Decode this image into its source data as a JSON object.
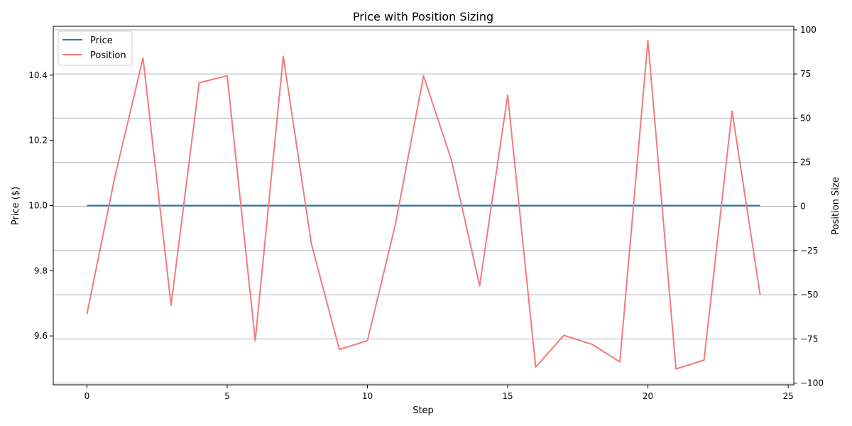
{
  "chart_data": {
    "type": "line",
    "title": "Price with Position Sizing",
    "xlabel": "Step",
    "ylabel_left": "Price ($)",
    "ylabel_right": "Position Size",
    "x": [
      0,
      1,
      2,
      3,
      4,
      5,
      6,
      7,
      8,
      9,
      10,
      11,
      12,
      13,
      14,
      15,
      16,
      17,
      18,
      19,
      20,
      21,
      22,
      23,
      24
    ],
    "xlim": [
      -1.2,
      25.2
    ],
    "xticks": [
      0,
      5,
      10,
      15,
      20,
      25
    ],
    "ylim_left": [
      9.45,
      10.55
    ],
    "yticks_left": [
      "9.6",
      "9.8",
      "10.0",
      "10.2",
      "10.4"
    ],
    "ylim_right": [
      -101,
      102
    ],
    "yticks_right": [
      -100,
      -75,
      -50,
      -25,
      0,
      25,
      50,
      75,
      100
    ],
    "grid": "horizontal (right axis)",
    "legend_position": "upper left",
    "series": [
      {
        "name": "Price",
        "axis": "left",
        "color": "#1f77b4",
        "values": [
          10,
          10,
          10,
          10,
          10,
          10,
          10,
          10,
          10,
          10,
          10,
          10,
          10,
          10,
          10,
          10,
          10,
          10,
          10,
          10,
          10,
          10,
          10,
          10,
          10
        ]
      },
      {
        "name": "Position",
        "axis": "right",
        "color": "#f47a7a",
        "values": [
          -61,
          17,
          84,
          -56,
          70,
          74,
          -76,
          85,
          -21,
          -81,
          -76,
          -10,
          74,
          26,
          -45,
          63,
          -91,
          -73,
          -78,
          -88,
          94,
          -92,
          -87,
          54,
          -50
        ]
      }
    ]
  }
}
